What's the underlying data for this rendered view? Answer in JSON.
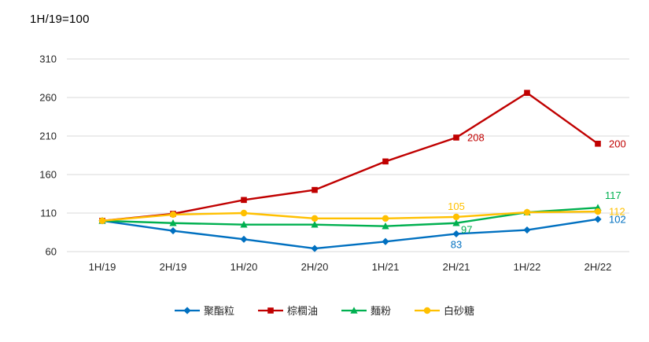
{
  "header": {
    "note": "1H/19=100"
  },
  "chart_data": {
    "type": "line",
    "title": "",
    "xlabel": "",
    "ylabel": "",
    "categories": [
      "1H/19",
      "2H/19",
      "1H/20",
      "2H/20",
      "1H/21",
      "2H/21",
      "1H/22",
      "2H/22"
    ],
    "ylim": [
      60,
      310
    ],
    "yticks": [
      60,
      110,
      160,
      210,
      260,
      310
    ],
    "grid": "horizontal",
    "gridline_color": "#d9d9d9",
    "tick_color": "#262626",
    "legend_position": "bottom",
    "series": [
      {
        "name": "聚酯粒",
        "color": "#0070c0",
        "marker": "diamond",
        "values": [
          100,
          87,
          76,
          64,
          73,
          83,
          88,
          102
        ],
        "labels": [
          {
            "index": 5,
            "text": "83",
            "pos": "below"
          },
          {
            "index": 7,
            "text": "102",
            "pos": "right"
          }
        ]
      },
      {
        "name": "棕櫚油",
        "color": "#c00000",
        "marker": "square",
        "values": [
          100,
          109,
          127,
          140,
          177,
          208,
          266,
          200
        ],
        "labels": [
          {
            "index": 5,
            "text": "208",
            "pos": "right"
          },
          {
            "index": 7,
            "text": "200",
            "pos": "right"
          }
        ]
      },
      {
        "name": "麵粉",
        "color": "#00b050",
        "marker": "triangle",
        "values": [
          100,
          97,
          95,
          95,
          93,
          97,
          111,
          117
        ],
        "labels": [
          {
            "index": 5,
            "text": "97",
            "pos": "below-right"
          },
          {
            "index": 7,
            "text": "117",
            "pos": "above-right"
          }
        ]
      },
      {
        "name": "白砂糖",
        "color": "#ffc000",
        "marker": "circle",
        "values": [
          100,
          108,
          110,
          103,
          103,
          105,
          111,
          112
        ],
        "labels": [
          {
            "index": 5,
            "text": "105",
            "pos": "above"
          },
          {
            "index": 7,
            "text": "112",
            "pos": "right"
          }
        ]
      }
    ]
  }
}
